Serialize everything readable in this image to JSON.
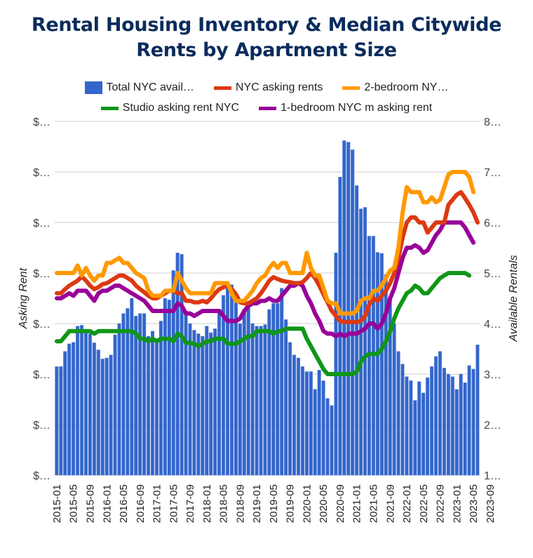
{
  "chart_data": {
    "type": "bar+line",
    "title_lines": [
      "Rental Housing Inventory & Median Citywide",
      "Rents by Apartment Size"
    ],
    "title": "Rental Housing Inventory & Median Citywide Rents by Apartment Size",
    "ylabel_left": "Asking Rent",
    "ylabel_right": "Available Rentals",
    "left_ticks": [
      "$…",
      "$…",
      "$…",
      "$…",
      "$…",
      "$…",
      "$…",
      "$…"
    ],
    "right_ticks": [
      "1…",
      "2…",
      "3…",
      "4…",
      "5…",
      "6…",
      "7…",
      "8…"
    ],
    "right_ylim": [
      1000,
      8000
    ],
    "left_ylim": [
      0,
      7
    ],
    "grid": true,
    "legend_position": "top",
    "x_tick_labels": [
      "2015-01",
      "2015-05",
      "2015-09",
      "2016-01",
      "2016-05",
      "2016-09",
      "2017-01",
      "2017-05",
      "2017-09",
      "2018-01",
      "2018-05",
      "2018-09",
      "2019-01",
      "2019-05",
      "2019-09",
      "2020-01",
      "2020-05",
      "2020-09",
      "2021-01",
      "2021-05",
      "2021-09",
      "2022-01",
      "2022-05",
      "2022-09",
      "2023-01",
      "2023-05",
      "2023-09"
    ],
    "x_start": "2015-01",
    "colors": {
      "inventory": "#3366cc",
      "nyc": "#dc3912",
      "two_bed": "#ff9900",
      "studio": "#109618",
      "one_bed": "#990099"
    },
    "series": [
      {
        "key": "inventory",
        "name": "Total NYC avail…",
        "type": "bar",
        "axis": "right",
        "values": [
          3150,
          3150,
          3450,
          3600,
          3630,
          3950,
          3970,
          3870,
          3800,
          3620,
          3480,
          3300,
          3320,
          3380,
          3780,
          4000,
          4200,
          4300,
          4500,
          4150,
          4200,
          4200,
          3750,
          3850,
          3700,
          4050,
          4500,
          4470,
          5050,
          5400,
          5370,
          4250,
          4000,
          3870,
          3800,
          3750,
          3950,
          3820,
          3900,
          4280,
          4560,
          4790,
          4770,
          4420,
          4000,
          4280,
          4320,
          4000,
          3950,
          3950,
          3980,
          4280,
          4400,
          4400,
          4700,
          4080,
          3630,
          3380,
          3320,
          3150,
          3050,
          3050,
          2700,
          3080,
          2870,
          2520,
          2380,
          5400,
          6900,
          7620,
          7590,
          7440,
          6730,
          6270,
          6300,
          5730,
          5730,
          5410,
          5390,
          4970,
          4520,
          4000,
          3450,
          3200,
          2950,
          2870,
          2480,
          2850,
          2630,
          2930,
          3150,
          3350,
          3450,
          3120,
          3000,
          2950,
          2700,
          3000,
          2830,
          3170,
          3100,
          3580
        ]
      },
      {
        "key": "nyc",
        "name": "NYC asking rents",
        "type": "line",
        "axis": "left",
        "values": [
          3.6,
          3.6,
          3.68,
          3.75,
          3.8,
          3.85,
          3.93,
          3.85,
          3.75,
          3.68,
          3.72,
          3.78,
          3.8,
          3.85,
          3.9,
          3.95,
          3.95,
          3.9,
          3.85,
          3.75,
          3.68,
          3.62,
          3.55,
          3.5,
          3.5,
          3.55,
          3.6,
          3.65,
          3.65,
          3.6,
          3.6,
          3.45,
          3.45,
          3.42,
          3.42,
          3.45,
          3.42,
          3.5,
          3.6,
          3.68,
          3.72,
          3.75,
          3.68,
          3.58,
          3.42,
          3.4,
          3.4,
          3.45,
          3.5,
          3.6,
          3.72,
          3.85,
          3.92,
          3.88,
          3.85,
          3.83,
          3.82,
          3.8,
          3.8,
          3.82,
          3.9,
          4.0,
          3.9,
          3.75,
          3.58,
          3.42,
          3.25,
          3.15,
          3.05,
          3.03,
          3.03,
          3.03,
          3.03,
          3.05,
          3.15,
          3.38,
          3.5,
          3.45,
          3.55,
          3.65,
          3.8,
          4.0,
          4.3,
          4.7,
          5.0,
          5.1,
          5.1,
          5.0,
          5.0,
          4.8,
          4.9,
          5.0,
          5.0,
          5.0,
          5.35,
          5.45,
          5.55,
          5.6,
          5.48,
          5.35,
          5.2,
          5.0
        ]
      },
      {
        "key": "two_bed",
        "name": "2-bedroom NY…",
        "type": "line",
        "axis": "left",
        "values": [
          4.0,
          4.0,
          4.0,
          4.0,
          4.0,
          4.15,
          3.95,
          4.1,
          3.95,
          3.85,
          3.95,
          3.95,
          4.2,
          4.2,
          4.25,
          4.3,
          4.2,
          4.2,
          4.1,
          4.0,
          3.95,
          3.9,
          3.65,
          3.55,
          3.55,
          3.55,
          3.65,
          3.65,
          3.65,
          4.0,
          3.85,
          3.7,
          3.6,
          3.6,
          3.6,
          3.6,
          3.6,
          3.6,
          3.8,
          3.8,
          3.8,
          3.8,
          3.6,
          3.45,
          3.45,
          3.45,
          3.55,
          3.65,
          3.8,
          3.9,
          3.95,
          4.1,
          4.2,
          4.1,
          4.2,
          4.2,
          4.0,
          4.0,
          4.0,
          4.0,
          4.4,
          4.1,
          3.95,
          3.95,
          3.7,
          3.45,
          3.4,
          3.4,
          3.2,
          3.2,
          3.2,
          3.2,
          3.25,
          3.45,
          3.5,
          3.5,
          3.65,
          3.65,
          3.75,
          3.9,
          4.05,
          4.1,
          4.5,
          5.2,
          5.7,
          5.6,
          5.6,
          5.6,
          5.4,
          5.4,
          5.5,
          5.4,
          5.45,
          5.7,
          5.95,
          6.0,
          6.0,
          6.0,
          6.0,
          5.9,
          5.6
        ]
      },
      {
        "key": "studio",
        "name": "Studio asking rent NYC",
        "type": "line",
        "axis": "left",
        "values": [
          2.65,
          2.65,
          2.75,
          2.85,
          2.85,
          2.85,
          2.85,
          2.85,
          2.85,
          2.8,
          2.85,
          2.85,
          2.85,
          2.85,
          2.85,
          2.85,
          2.85,
          2.85,
          2.85,
          2.8,
          2.7,
          2.7,
          2.65,
          2.7,
          2.65,
          2.7,
          2.7,
          2.7,
          2.65,
          2.8,
          2.75,
          2.62,
          2.62,
          2.6,
          2.55,
          2.6,
          2.65,
          2.65,
          2.7,
          2.7,
          2.7,
          2.6,
          2.6,
          2.6,
          2.65,
          2.7,
          2.75,
          2.75,
          2.85,
          2.85,
          2.85,
          2.85,
          2.8,
          2.85,
          2.85,
          2.9,
          2.9,
          2.9,
          2.9,
          2.9,
          2.7,
          2.55,
          2.4,
          2.25,
          2.1,
          2.0,
          2.0,
          2.0,
          2.0,
          2.0,
          2.0,
          2.0,
          2.05,
          2.25,
          2.35,
          2.4,
          2.4,
          2.4,
          2.5,
          2.65,
          2.85,
          3.1,
          3.3,
          3.45,
          3.6,
          3.65,
          3.75,
          3.7,
          3.6,
          3.6,
          3.7,
          3.8,
          3.9,
          3.95,
          4.0,
          4.0,
          4.0,
          4.0,
          4.0,
          3.95
        ]
      },
      {
        "key": "one_bed",
        "name": "1-bedroom NYC m asking rent",
        "type": "line",
        "axis": "left",
        "values": [
          3.5,
          3.5,
          3.55,
          3.6,
          3.55,
          3.65,
          3.65,
          3.65,
          3.55,
          3.45,
          3.6,
          3.65,
          3.65,
          3.7,
          3.75,
          3.75,
          3.7,
          3.65,
          3.6,
          3.55,
          3.5,
          3.45,
          3.35,
          3.25,
          3.25,
          3.25,
          3.25,
          3.25,
          3.25,
          3.4,
          3.35,
          3.2,
          3.2,
          3.15,
          3.2,
          3.25,
          3.25,
          3.25,
          3.25,
          3.25,
          3.15,
          3.05,
          3.05,
          3.05,
          3.1,
          3.25,
          3.35,
          3.4,
          3.4,
          3.45,
          3.45,
          3.5,
          3.45,
          3.45,
          3.55,
          3.65,
          3.75,
          3.75,
          3.8,
          3.75,
          3.55,
          3.4,
          3.2,
          3.05,
          2.85,
          2.8,
          2.8,
          2.75,
          2.8,
          2.75,
          2.8,
          2.8,
          2.8,
          2.85,
          2.9,
          3.0,
          3.0,
          2.9,
          3.0,
          3.2,
          3.5,
          3.7,
          4.0,
          4.3,
          4.5,
          4.5,
          4.55,
          4.5,
          4.4,
          4.45,
          4.6,
          4.75,
          4.85,
          5.0,
          5.0,
          5.0,
          5.0,
          5.0,
          4.9,
          4.75,
          4.6
        ]
      }
    ]
  }
}
